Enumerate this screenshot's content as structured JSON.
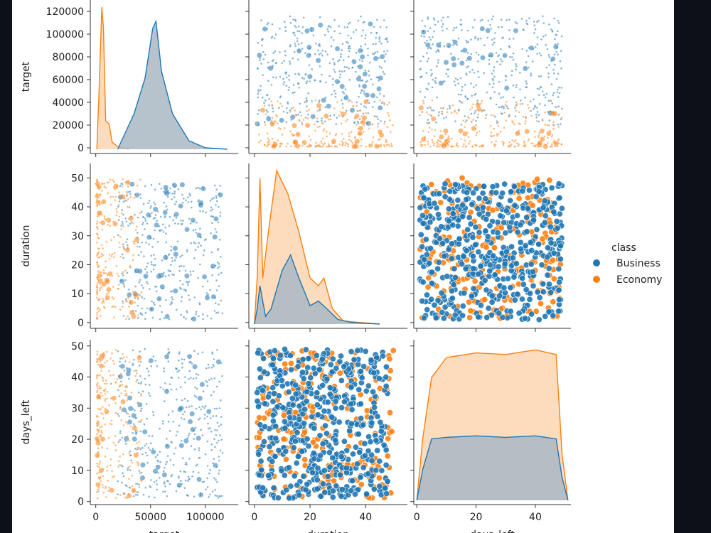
{
  "colors": {
    "business": "#1f77b4",
    "economy": "#ff7f0e",
    "overlap": "#bdbdbd",
    "page_bg": "#0d1117"
  },
  "legend": {
    "title": "class",
    "items": [
      {
        "label": "Business",
        "color": "#1f77b4"
      },
      {
        "label": "Economy",
        "color": "#ff7f0e"
      }
    ]
  },
  "chart_data": {
    "type": "scatter",
    "subtype": "pairplot",
    "variables": [
      "target",
      "duration",
      "days_left"
    ],
    "hue": "class",
    "ranges": {
      "target": [
        -5000,
        130000
      ],
      "duration": [
        -2,
        55
      ],
      "days_left": [
        -1,
        52
      ]
    },
    "ticks": {
      "target": [
        "0",
        "20000",
        "40000",
        "60000",
        "80000",
        "100000",
        "120000"
      ],
      "target_x": [
        "0",
        "50000",
        "100000"
      ],
      "duration": [
        "0",
        "10",
        "20",
        "30",
        "40",
        "50"
      ],
      "duration_x": [
        "0",
        "20",
        "40"
      ],
      "days_left": [
        "0",
        "10",
        "20",
        "30",
        "40",
        "50"
      ],
      "days_left_x": [
        "0",
        "20",
        "40"
      ]
    },
    "series": [
      {
        "name": "Business",
        "color": "#1f77b4",
        "target_range": [
          20000,
          116000
        ],
        "duration_range": [
          1,
          48
        ],
        "days_left_range": [
          1,
          49
        ],
        "kde_target": {
          "x": [
            20000,
            35000,
            45000,
            52000,
            55000,
            60000,
            70000,
            85000,
            100000,
            120000
          ],
          "density": [
            0.0,
            0.25,
            0.5,
            0.85,
            0.9,
            0.55,
            0.25,
            0.06,
            0.01,
            0.0
          ]
        },
        "kde_duration": {
          "x": [
            0,
            1,
            2,
            4,
            6,
            10,
            13,
            16,
            20,
            23,
            26,
            30,
            35,
            45
          ],
          "density": [
            0.0,
            0.1,
            0.25,
            0.05,
            0.1,
            0.35,
            0.45,
            0.3,
            0.12,
            0.15,
            0.1,
            0.03,
            0.01,
            0.0
          ]
        },
        "kde_days_left": {
          "x": [
            0,
            2,
            5,
            10,
            20,
            30,
            40,
            47,
            49,
            51
          ],
          "density": [
            0.0,
            0.2,
            0.4,
            0.41,
            0.42,
            0.41,
            0.42,
            0.4,
            0.15,
            0.0
          ]
        }
      },
      {
        "name": "Economy",
        "color": "#ff7f0e",
        "target_range": [
          1100,
          42000
        ],
        "duration_range": [
          0.8,
          50
        ],
        "days_left_range": [
          1,
          49
        ],
        "kde_target": {
          "x": [
            1000,
            3000,
            5500,
            7000,
            9000,
            12000,
            15000,
            20000,
            30000
          ],
          "density": [
            0.0,
            0.4,
            1.0,
            0.85,
            0.2,
            0.18,
            0.05,
            0.02,
            0.0
          ]
        },
        "kde_duration": {
          "x": [
            0,
            1,
            2,
            3,
            5,
            8,
            12,
            16,
            20,
            23,
            25,
            28,
            32,
            45
          ],
          "density": [
            0.0,
            0.3,
            0.95,
            0.3,
            0.6,
            1.0,
            0.85,
            0.6,
            0.3,
            0.25,
            0.3,
            0.1,
            0.02,
            0.0
          ]
        },
        "kde_days_left": {
          "x": [
            0,
            2,
            5,
            10,
            20,
            30,
            40,
            47,
            49,
            51
          ],
          "density": [
            0.0,
            0.4,
            0.8,
            0.93,
            0.96,
            0.95,
            0.98,
            0.95,
            0.3,
            0.0
          ]
        }
      }
    ],
    "legend_position": "right"
  }
}
